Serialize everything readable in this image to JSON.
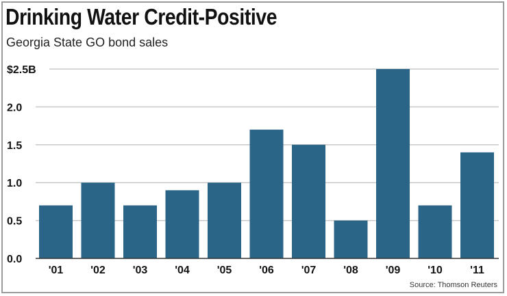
{
  "chart_data": {
    "type": "bar",
    "title": "Drinking Water Credit-Positive",
    "subtitle": "Georgia State GO bond sales",
    "categories": [
      "'01",
      "'02",
      "'03",
      "'04",
      "'05",
      "'06",
      "'07",
      "'08",
      "'09",
      "'10",
      "'11"
    ],
    "values": [
      0.7,
      1.0,
      0.7,
      0.9,
      1.0,
      1.7,
      1.5,
      0.5,
      2.5,
      0.7,
      1.4
    ],
    "ylim": [
      0,
      2.5
    ],
    "yticks": [
      0,
      0.5,
      1.0,
      1.5,
      2.0,
      2.5
    ],
    "ytick_labels": [
      "0.0",
      "0.5",
      "1.0",
      "1.5",
      "2.0",
      "$2.5B"
    ],
    "xlabel": "",
    "ylabel": "",
    "grid": true,
    "source": "Source: Thomson Reuters",
    "bar_color": "#2a6587"
  }
}
